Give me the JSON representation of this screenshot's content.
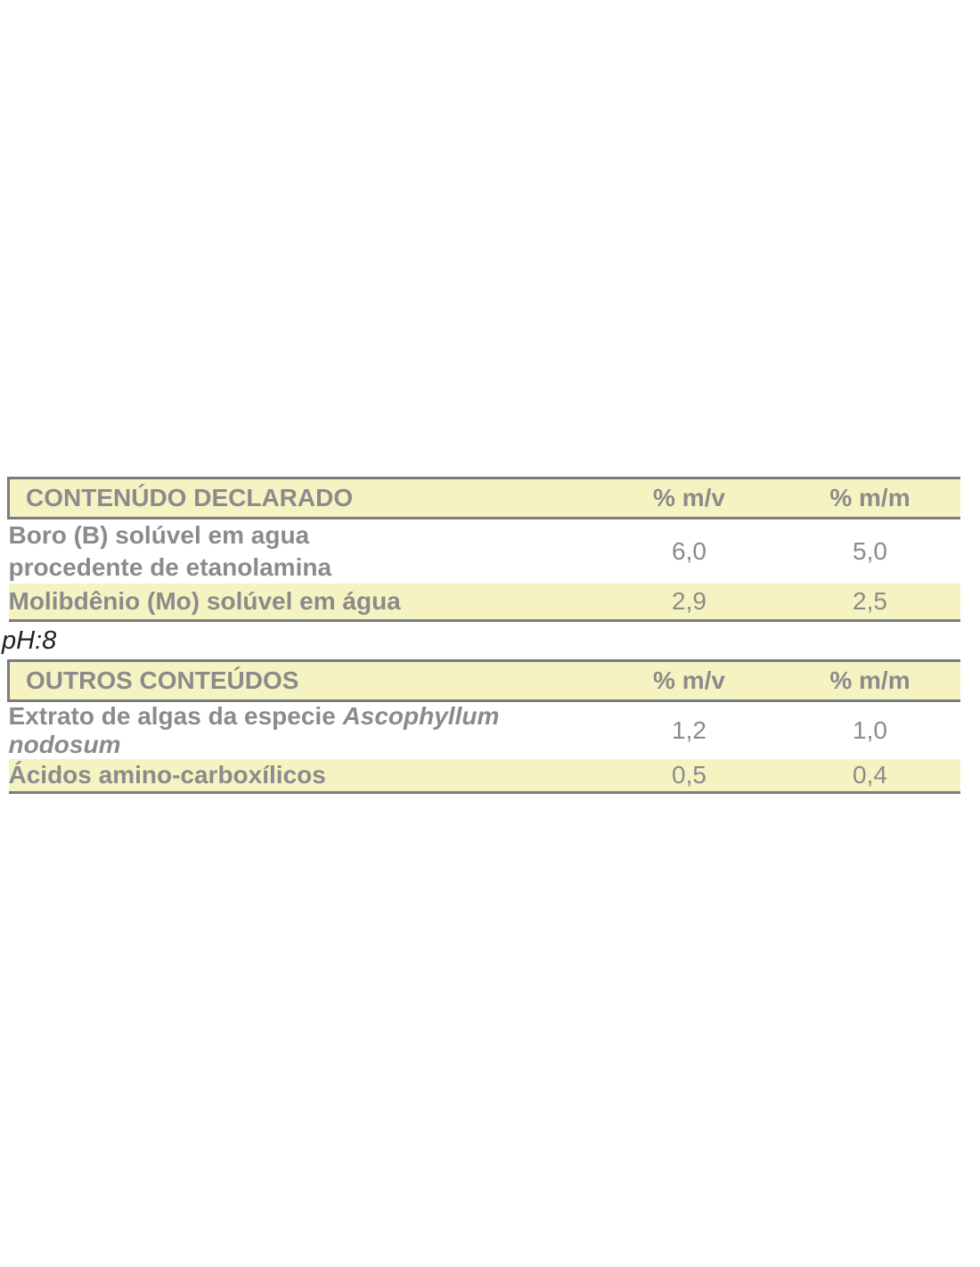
{
  "colors": {
    "row_yellow": "#f6f3c2",
    "border_gray": "#7c7c7c",
    "table_text_gray": "#8b8b8b",
    "ph_text_dark": "#202020",
    "page_background": "#ffffff"
  },
  "declared_table": {
    "header": {
      "title": "CONTENÚDO DECLARADO",
      "col_mv": "% m/v",
      "col_mm": "% m/m"
    },
    "rows": {
      "boro": {
        "label_line1": "Boro (B) solúvel em agua",
        "label_line2": "procedente de etanolamina",
        "mv": "6,0",
        "mm": "5,0"
      },
      "molibdenio": {
        "label": "Molibdênio (Mo) solúvel em água",
        "mv": "2,9",
        "mm": "2,5"
      }
    }
  },
  "ph_note": "pH:8",
  "other_table": {
    "header": {
      "title": "OUTROS CONTEÚDOS",
      "col_mv": "% m/v",
      "col_mm": "% m/m"
    },
    "rows": {
      "algae_extract": {
        "label_prefix": "Extrato de algas da especie ",
        "label_species": "Ascophyllum nodosum",
        "mv": "1,2",
        "mm": "1,0"
      },
      "amino_acids": {
        "label": "Ácidos amino-carboxílicos",
        "mv": "0,5",
        "mm": "0,4"
      }
    }
  }
}
